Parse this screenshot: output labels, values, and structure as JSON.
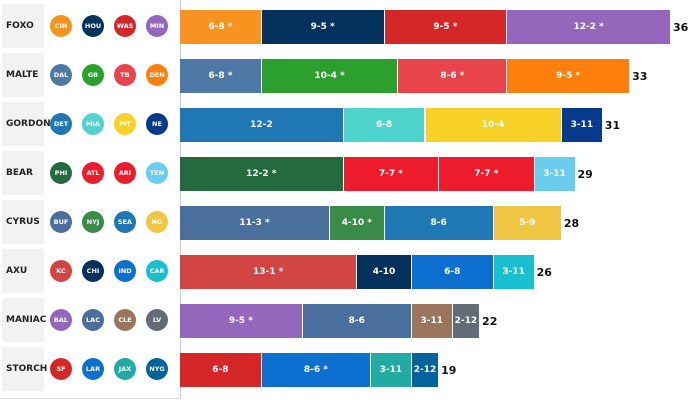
{
  "chart_data": {
    "type": "bar",
    "orientation": "horizontal-stacked",
    "title": "",
    "xlabel": "",
    "ylabel": "",
    "owners": [
      {
        "name": "FOXO",
        "total": 36,
        "teams": [
          {
            "team": "Bengals",
            "abbr": "CIN",
            "record": "6-8 *",
            "wins": 6,
            "color": "#f7931e"
          },
          {
            "team": "Texans",
            "abbr": "HOU",
            "record": "9-5 *",
            "wins": 9,
            "color": "#03325e"
          },
          {
            "team": "Commanders",
            "abbr": "WAS",
            "record": "9-5 *",
            "wins": 9,
            "color": "#d62728"
          },
          {
            "team": "Vikings",
            "abbr": "MIN",
            "record": "12-2 *",
            "wins": 12,
            "color": "#9467bd"
          }
        ]
      },
      {
        "name": "MALTE",
        "total": 33,
        "teams": [
          {
            "team": "Cowboys",
            "abbr": "DAL",
            "record": "6-8 *",
            "wins": 6,
            "color": "#4e79a7"
          },
          {
            "team": "Packers",
            "abbr": "GB",
            "record": "10-4 *",
            "wins": 10,
            "color": "#2ca02c"
          },
          {
            "team": "Buccaneers",
            "abbr": "TB",
            "record": "8-6 *",
            "wins": 8,
            "color": "#e9434b"
          },
          {
            "team": "Broncos",
            "abbr": "DEN",
            "record": "9-5 *",
            "wins": 9,
            "color": "#ff7f0e"
          }
        ]
      },
      {
        "name": "GORDON",
        "total": 31,
        "teams": [
          {
            "team": "Lions",
            "abbr": "DET",
            "record": "12-2",
            "wins": 12,
            "color": "#1f77b4"
          },
          {
            "team": "Dolphins",
            "abbr": "MIA",
            "record": "6-8",
            "wins": 6,
            "color": "#4fd3cc"
          },
          {
            "team": "Steelers",
            "abbr": "PIT",
            "record": "10-4",
            "wins": 10,
            "color": "#f7d127"
          },
          {
            "team": "Patriots",
            "abbr": "NE",
            "record": "3-11",
            "wins": 3,
            "color": "#073a8d"
          }
        ]
      },
      {
        "name": "BEAR",
        "total": 29,
        "teams": [
          {
            "team": "Eagles",
            "abbr": "PHI",
            "record": "12-2 *",
            "wins": 12,
            "color": "#236b3f"
          },
          {
            "team": "Falcons",
            "abbr": "ATL",
            "record": "7-7 *",
            "wins": 7,
            "color": "#ec1c2d"
          },
          {
            "team": "Cardinals",
            "abbr": "ARI",
            "record": "7-7 *",
            "wins": 7,
            "color": "#ec1c2d"
          },
          {
            "team": "Titans",
            "abbr": "TEN",
            "record": "3-11",
            "wins": 3,
            "color": "#6bcdee"
          }
        ]
      },
      {
        "name": "CYRUS",
        "total": 28,
        "teams": [
          {
            "team": "Bills",
            "abbr": "BUF",
            "record": "11-3 *",
            "wins": 11,
            "color": "#4a6f9c"
          },
          {
            "team": "Jets",
            "abbr": "NYJ",
            "record": "4-10 *",
            "wins": 4,
            "color": "#3a8a48"
          },
          {
            "team": "Seahawks",
            "abbr": "SEA",
            "record": "8-6",
            "wins": 8,
            "color": "#1f77b4"
          },
          {
            "team": "Saints",
            "abbr": "NO",
            "record": "5-9",
            "wins": 5,
            "color": "#eec643"
          }
        ]
      },
      {
        "name": "AXU",
        "total": 26,
        "teams": [
          {
            "team": "Chiefs",
            "abbr": "KC",
            "record": "13-1 *",
            "wins": 13,
            "color": "#d14545"
          },
          {
            "team": "Bears",
            "abbr": "CHI",
            "record": "4-10",
            "wins": 4,
            "color": "#04315c"
          },
          {
            "team": "Colts",
            "abbr": "IND",
            "record": "6-8",
            "wins": 6,
            "color": "#0d6fcf"
          },
          {
            "team": "Panthers",
            "abbr": "CAR",
            "record": "3-11",
            "wins": 3,
            "color": "#17bfcf"
          }
        ]
      },
      {
        "name": "MANIAC",
        "total": 22,
        "teams": [
          {
            "team": "Ravens",
            "abbr": "BAL",
            "record": "9-5 *",
            "wins": 9,
            "color": "#9467bd"
          },
          {
            "team": "Chargers",
            "abbr": "LAC",
            "record": "8-6",
            "wins": 8,
            "color": "#4a6f9c"
          },
          {
            "team": "Browns",
            "abbr": "CLE",
            "record": "3-11",
            "wins": 3,
            "color": "#9c755f"
          },
          {
            "team": "Raiders",
            "abbr": "LV",
            "record": "2-12",
            "wins": 2,
            "color": "#626c77"
          }
        ]
      },
      {
        "name": "STORCH",
        "total": 19,
        "teams": [
          {
            "team": "49ers",
            "abbr": "SF",
            "record": "6-8",
            "wins": 6,
            "color": "#d62728"
          },
          {
            "team": "Rams",
            "abbr": "LAR",
            "record": "8-6 *",
            "wins": 8,
            "color": "#0d6fcf"
          },
          {
            "team": "Jaguars",
            "abbr": "JAX",
            "record": "3-11",
            "wins": 3,
            "color": "#22aba3"
          },
          {
            "team": "Giants",
            "abbr": "NYG",
            "record": "2-12",
            "wins": 2,
            "color": "#03639a"
          }
        ]
      }
    ],
    "xlim": [
      0,
      37
    ]
  }
}
